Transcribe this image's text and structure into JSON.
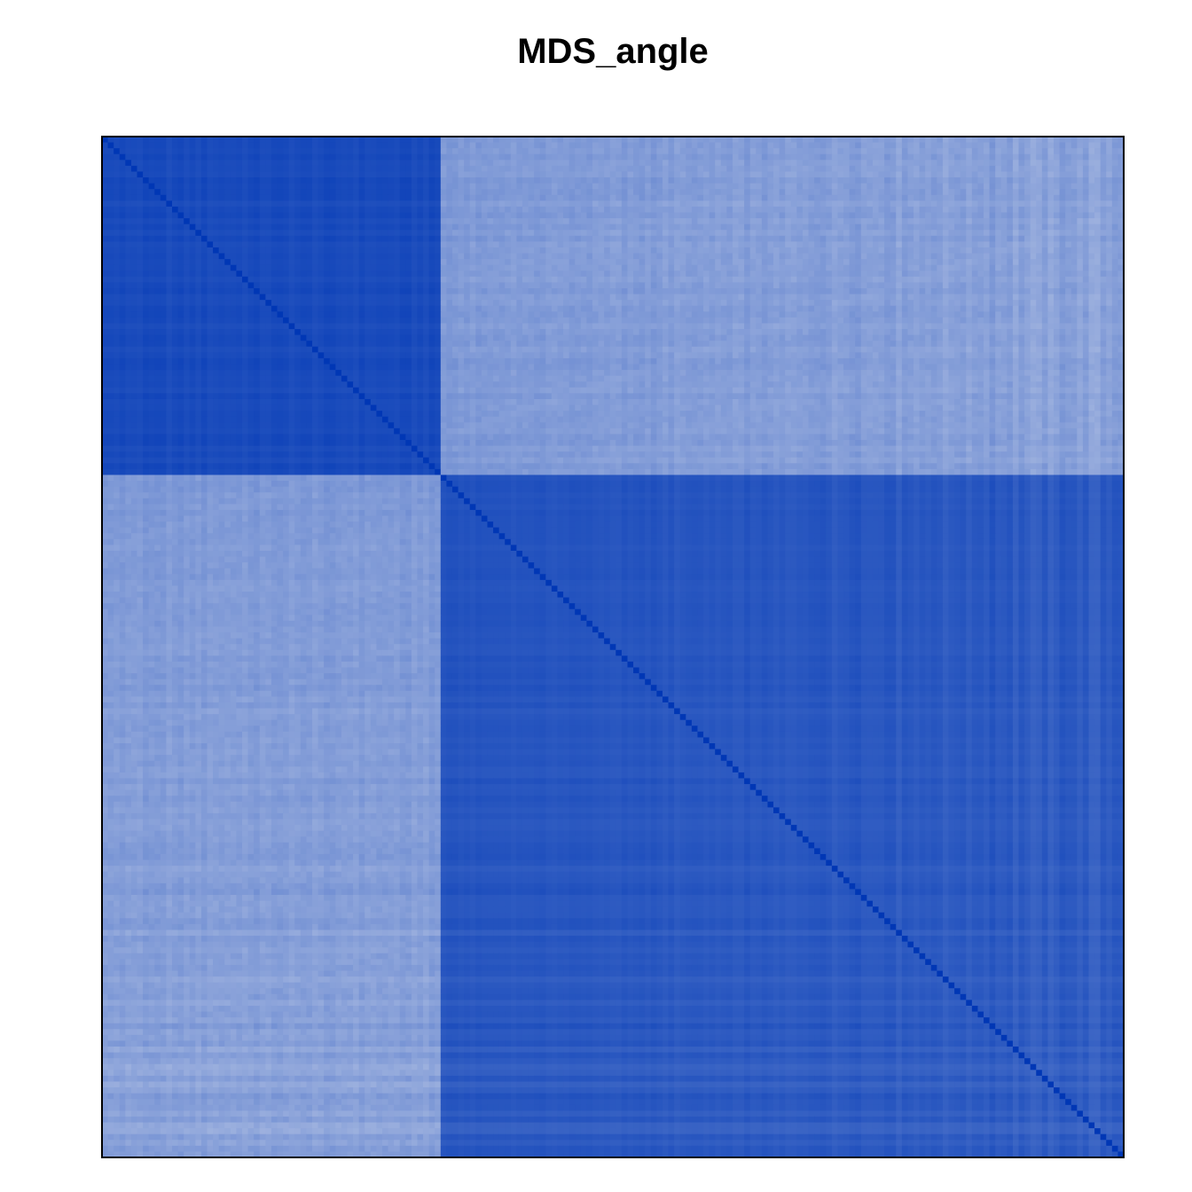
{
  "chart_data": {
    "type": "heatmap",
    "title": "MDS_angle",
    "xlabel": "",
    "ylabel": "",
    "grid": false,
    "legend": "none",
    "n": 175,
    "block_split_index": 58,
    "colors": {
      "low": "#eceef3",
      "high": "#0037b5",
      "frame": "#000000",
      "background": "#ffffff"
    },
    "value_range": [
      0,
      1
    ],
    "block_levels": {
      "top_left": 0.86,
      "bottom_right": 0.8,
      "off_diagonal": 0.48
    },
    "diagonal_value": 1.0
  }
}
